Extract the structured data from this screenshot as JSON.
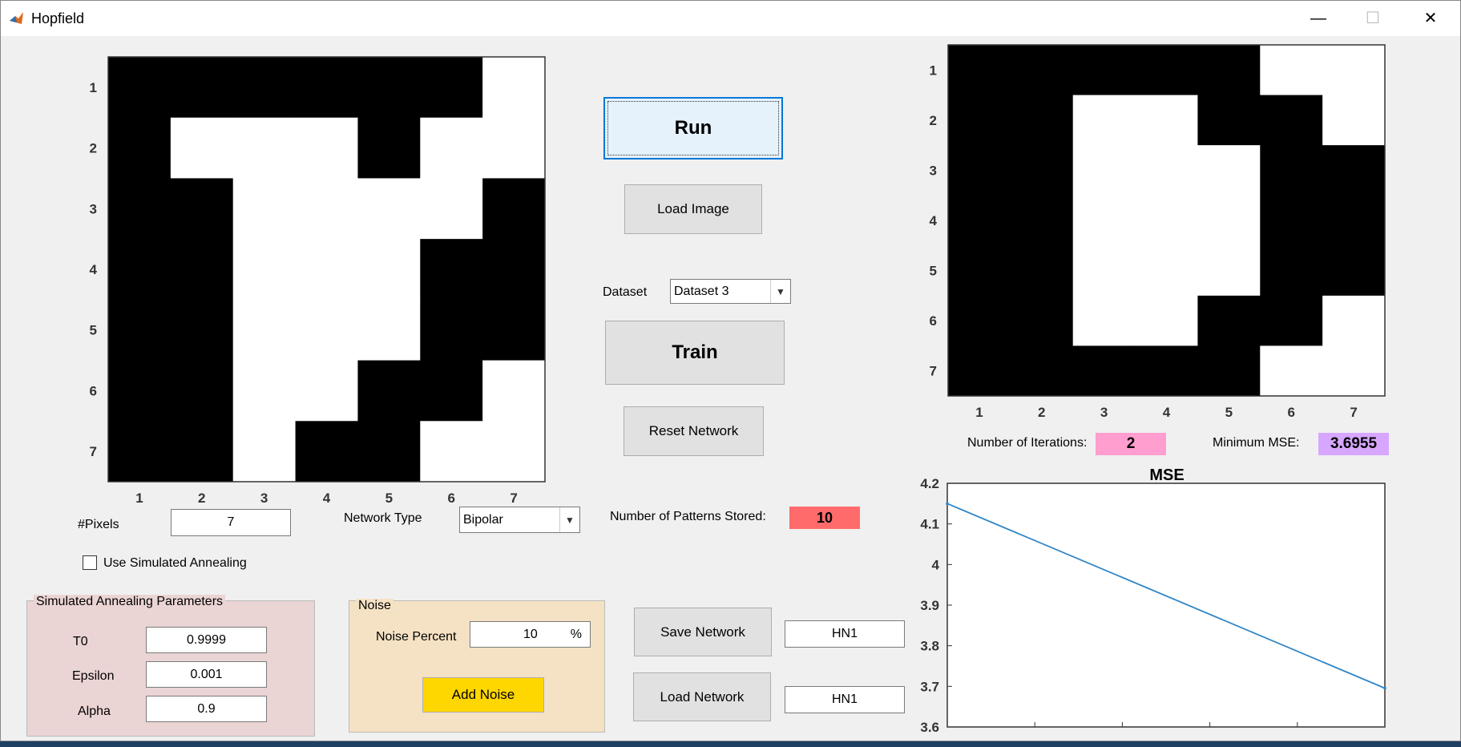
{
  "window": {
    "title": "Hopfield",
    "minimize_glyph": "—",
    "maximize_glyph": "☐",
    "close_glyph": "✕"
  },
  "input_image": {
    "tick_labels": [
      "1",
      "2",
      "3",
      "4",
      "5",
      "6",
      "7"
    ],
    "pixels": [
      [
        1,
        1,
        1,
        1,
        1,
        1,
        0
      ],
      [
        1,
        0,
        0,
        0,
        1,
        0,
        0
      ],
      [
        1,
        1,
        0,
        0,
        0,
        0,
        1
      ],
      [
        1,
        1,
        0,
        0,
        0,
        1,
        1
      ],
      [
        1,
        1,
        0,
        0,
        0,
        1,
        1
      ],
      [
        1,
        1,
        0,
        0,
        1,
        1,
        0
      ],
      [
        1,
        1,
        0,
        1,
        1,
        0,
        0
      ]
    ]
  },
  "output_image": {
    "tick_labels": [
      "1",
      "2",
      "3",
      "4",
      "5",
      "6",
      "7"
    ],
    "pixels": [
      [
        1,
        1,
        1,
        1,
        1,
        0,
        0
      ],
      [
        1,
        1,
        0,
        0,
        1,
        1,
        0
      ],
      [
        1,
        1,
        0,
        0,
        0,
        1,
        1
      ],
      [
        1,
        1,
        0,
        0,
        0,
        1,
        1
      ],
      [
        1,
        1,
        0,
        0,
        0,
        1,
        1
      ],
      [
        1,
        1,
        0,
        0,
        1,
        1,
        0
      ],
      [
        1,
        1,
        1,
        1,
        1,
        0,
        0
      ]
    ]
  },
  "controls": {
    "run_label": "Run",
    "load_image_label": "Load Image",
    "dataset_label": "Dataset",
    "dataset_value": "Dataset 3",
    "train_label": "Train",
    "reset_network_label": "Reset Network",
    "patterns_stored_label": "Number of Patterns Stored:",
    "patterns_stored_value": "10",
    "pixels_label": "#Pixels",
    "pixels_value": "7",
    "network_type_label": "Network Type",
    "network_type_value": "Bipolar",
    "use_sa_label": "Use Simulated Annealing",
    "use_sa_checked": false,
    "save_network_label": "Save Network",
    "save_network_name": "HN1",
    "load_network_label": "Load Network",
    "load_network_name": "HN1"
  },
  "sa_params": {
    "title": "Simulated Annealing Parameters",
    "t0_label": "T0",
    "t0_value": "0.9999",
    "epsilon_label": "Epsilon",
    "epsilon_value": "0.001",
    "alpha_label": "Alpha",
    "alpha_value": "0.9"
  },
  "noise": {
    "title": "Noise",
    "percent_label": "Noise Percent",
    "percent_value": "10",
    "percent_unit": "%",
    "add_noise_label": "Add Noise"
  },
  "stats": {
    "iterations_label": "Number of Iterations:",
    "iterations_value": "2",
    "min_mse_label": "Minimum MSE:",
    "min_mse_value": "3.6955"
  },
  "colors": {
    "iterations_bg": "#ff9ecf",
    "min_mse_bg": "#d7a6ff",
    "patterns_bg": "#ff6b6b",
    "add_noise_bg": "#ffd700",
    "sa_group_bg": "#ebd4d4",
    "noise_group_bg": "#f5e2c4",
    "line_color": "#2f85c7"
  },
  "chart_data": {
    "type": "line",
    "title": "MSE",
    "x": [
      1,
      2
    ],
    "series": [
      {
        "values": [
          4.15,
          3.6955
        ]
      }
    ],
    "xlim": [
      1,
      2
    ],
    "ylim": [
      3.6,
      4.2
    ],
    "xticks": [
      "1",
      "1.2",
      "1.4",
      "1.6",
      "1.8",
      "2"
    ],
    "yticks": [
      "3.6",
      "3.7",
      "3.8",
      "3.9",
      "4",
      "4.1",
      "4.2"
    ],
    "xlabel": "",
    "ylabel": "",
    "grid": false
  }
}
